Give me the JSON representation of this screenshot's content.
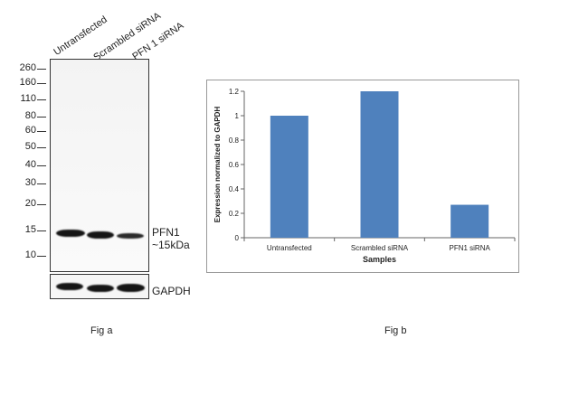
{
  "fig_a": {
    "caption": "Fig a",
    "lanes": [
      "Untransfected",
      "Scrambled siRNA",
      "PFN 1 siRNA"
    ],
    "markers": [
      "260",
      "160",
      "110",
      "80",
      "60",
      "50",
      "40",
      "30",
      "20",
      "15",
      "10"
    ],
    "bands": {
      "pfn1_name": "PFN1",
      "pfn1_size": "~15kDa",
      "loading_control": "GAPDH"
    }
  },
  "fig_b": {
    "caption": "Fig b"
  },
  "chart_data": {
    "type": "bar",
    "categories": [
      "Untransfected",
      "Scrambled siRNA",
      "PFN1 siRNA"
    ],
    "values": [
      1.0,
      1.2,
      0.27
    ],
    "xlabel": "Samples",
    "ylabel": "Expression normalized to GAPDH",
    "ylim": [
      0,
      1.2
    ],
    "yticks": [
      0,
      0.2,
      0.4,
      0.6,
      0.8,
      1,
      1.2
    ],
    "ytick_labels": [
      "0",
      "0.2",
      "0.4",
      "0.6",
      "0.8",
      "1",
      "1.2"
    ],
    "bar_color": "#4f81bd",
    "grid": false,
    "legend": "none"
  }
}
